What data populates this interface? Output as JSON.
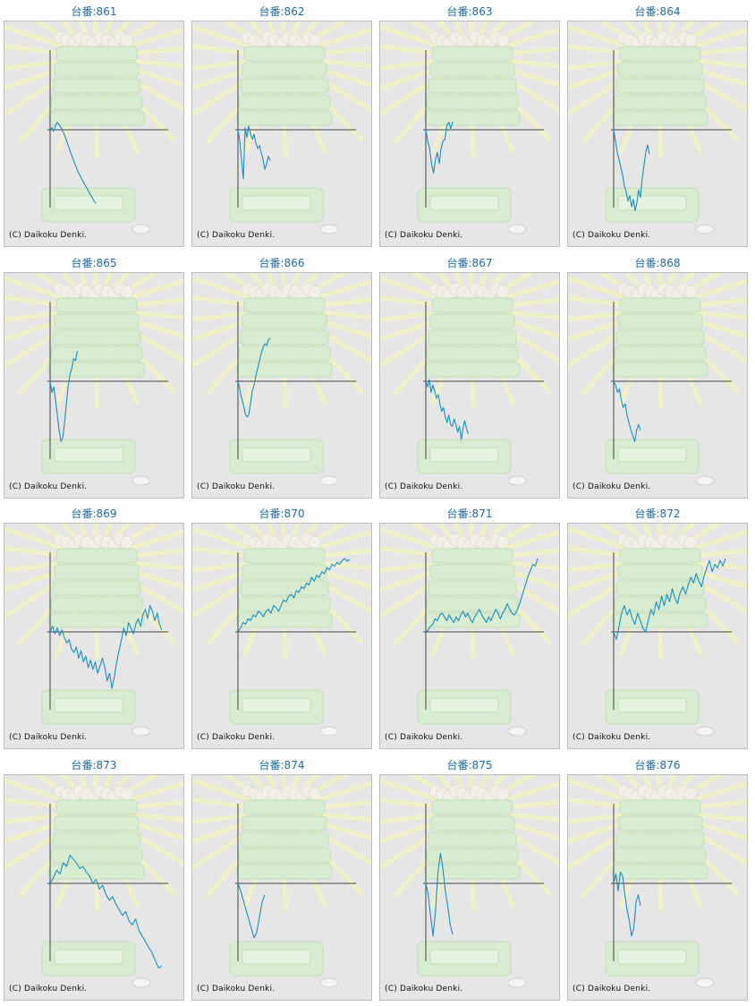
{
  "copyright": "(C) Daikoku Denki.",
  "colors": {
    "line": "#1a8ec2",
    "axis": "#555555",
    "panel_bg": "#e6e6e6",
    "title": "#1f6aa5"
  },
  "chart_data": [
    {
      "type": "line",
      "title": "台番:861",
      "y": [
        0,
        0.06,
        -0.04,
        0.1,
        0.2,
        0.14,
        0.08,
        -0.02,
        -0.12,
        -0.24,
        -0.38,
        -0.52,
        -0.66,
        -0.78,
        -0.9,
        -1.02,
        -1.14,
        -1.22,
        -1.32,
        -1.4,
        -1.48,
        -1.56,
        -1.66,
        -1.74,
        -1.82,
        -1.9,
        -1.96
      ]
    },
    {
      "type": "line",
      "title": "台番:862",
      "y": [
        0,
        -0.3,
        -0.8,
        -1.3,
        0.05,
        -0.2,
        0.1,
        -0.1,
        -0.25,
        -0.12,
        -0.36,
        -0.5,
        -0.42,
        -0.62,
        -0.8,
        -1.05,
        -0.9,
        -0.7,
        -0.82
      ]
    },
    {
      "type": "line",
      "title": "台番:863",
      "y": [
        0,
        -0.3,
        -0.5,
        -0.9,
        -1.15,
        -0.8,
        -0.6,
        -0.9,
        -0.5,
        -0.3,
        -0.25,
        0.12,
        0.2,
        0.03,
        0.22
      ]
    },
    {
      "type": "line",
      "title": "台番:864",
      "y": [
        0,
        -0.3,
        -0.6,
        -0.8,
        -1.0,
        -1.2,
        -1.5,
        -1.65,
        -1.9,
        -1.75,
        -2.05,
        -1.85,
        -2.15,
        -1.95,
        -1.6,
        -1.8,
        -1.3,
        -0.95,
        -0.6,
        -0.4,
        -0.65
      ]
    },
    {
      "type": "line",
      "title": "台番:865",
      "y": [
        0,
        -0.3,
        -0.15,
        -0.5,
        -0.9,
        -1.3,
        -1.6,
        -1.5,
        -1.1,
        -0.6,
        -0.1,
        0.2,
        0.35,
        0.6,
        0.55,
        0.8
      ]
    },
    {
      "type": "line",
      "title": "台番:866",
      "y": [
        0,
        -0.2,
        -0.45,
        -0.6,
        -0.85,
        -0.95,
        -0.9,
        -0.6,
        -0.25,
        -0.1,
        0.15,
        0.35,
        0.55,
        0.75,
        0.9,
        1.0,
        0.95,
        1.1,
        1.15
      ]
    },
    {
      "type": "line",
      "title": "台番:867",
      "y": [
        0,
        -0.15,
        0.05,
        -0.3,
        -0.1,
        -0.25,
        -0.45,
        -0.35,
        -0.6,
        -0.8,
        -0.7,
        -0.95,
        -1.1,
        -0.9,
        -1.15,
        -1.2,
        -1.0,
        -1.15,
        -1.35,
        -1.2,
        -1.55,
        -1.25,
        -1.05,
        -1.25,
        -1.4
      ]
    },
    {
      "type": "line",
      "title": "台番:868",
      "y": [
        0,
        -0.1,
        -0.3,
        -0.2,
        -0.5,
        -0.7,
        -0.6,
        -0.9,
        -1.1,
        -1.3,
        -1.45,
        -1.6,
        -1.3,
        -1.15,
        -1.3
      ]
    },
    {
      "type": "line",
      "title": "台番:869",
      "y": [
        0,
        0.15,
        -0.05,
        0.1,
        -0.1,
        0.05,
        -0.15,
        -0.3,
        -0.2,
        -0.45,
        -0.55,
        -0.4,
        -0.7,
        -0.5,
        -0.8,
        -0.65,
        -0.95,
        -0.75,
        -1.0,
        -0.8,
        -1.1,
        -0.9,
        -0.7,
        -0.95,
        -1.3,
        -1.1,
        -1.5,
        -1.2,
        -0.8,
        -0.5,
        -0.2,
        0.1,
        -0.1,
        0.25,
        0.1,
        -0.05,
        0.2,
        0.35,
        0.15,
        0.45,
        0.6,
        0.35,
        0.7,
        0.55,
        0.3,
        0.5,
        0.2,
        0.05
      ]
    },
    {
      "type": "line",
      "title": "台番:870",
      "y": [
        0,
        0.1,
        0.25,
        0.2,
        0.35,
        0.3,
        0.45,
        0.4,
        0.55,
        0.5,
        0.4,
        0.55,
        0.6,
        0.5,
        0.7,
        0.65,
        0.55,
        0.7,
        0.85,
        0.8,
        0.95,
        1.0,
        0.9,
        1.1,
        1.05,
        1.2,
        1.15,
        1.3,
        1.25,
        1.45,
        1.35,
        1.5,
        1.45,
        1.6,
        1.55,
        1.7,
        1.65,
        1.8,
        1.75,
        1.85,
        1.8,
        1.9,
        1.95,
        1.88,
        1.93
      ]
    },
    {
      "type": "line",
      "title": "台番:871",
      "y": [
        0,
        0.05,
        0.15,
        0.2,
        0.35,
        0.3,
        0.45,
        0.5,
        0.4,
        0.3,
        0.45,
        0.35,
        0.25,
        0.4,
        0.3,
        0.45,
        0.55,
        0.4,
        0.5,
        0.35,
        0.25,
        0.4,
        0.5,
        0.6,
        0.45,
        0.35,
        0.25,
        0.4,
        0.3,
        0.45,
        0.6,
        0.5,
        0.35,
        0.5,
        0.6,
        0.75,
        0.6,
        0.5,
        0.45,
        0.55,
        0.7,
        0.9,
        1.1,
        1.3,
        1.5,
        1.65,
        1.8,
        1.75,
        1.95
      ]
    },
    {
      "type": "line",
      "title": "台番:872",
      "y": [
        0,
        -0.2,
        0.15,
        0.5,
        0.7,
        0.45,
        0.6,
        0.35,
        0.2,
        0.5,
        0.3,
        0.1,
        0.0,
        0.3,
        0.6,
        0.45,
        0.8,
        0.6,
        0.95,
        0.7,
        1.0,
        0.8,
        1.15,
        0.9,
        0.75,
        1.05,
        1.2,
        1.0,
        1.25,
        1.45,
        1.3,
        1.55,
        1.35,
        1.2,
        1.5,
        1.7,
        1.9,
        1.6,
        1.8,
        1.7,
        1.9,
        1.75,
        1.95
      ]
    },
    {
      "type": "line",
      "title": "台番:873",
      "y": [
        0,
        0.15,
        0.35,
        0.25,
        0.55,
        0.45,
        0.75,
        0.65,
        0.55,
        0.4,
        0.45,
        0.3,
        0.2,
        0.0,
        0.1,
        -0.15,
        -0.05,
        -0.3,
        -0.45,
        -0.35,
        -0.55,
        -0.7,
        -0.85,
        -0.75,
        -1.0,
        -1.1,
        -0.95,
        -1.25,
        -1.4,
        -1.55,
        -1.7,
        -1.85,
        -2.05,
        -2.25,
        -2.2
      ]
    },
    {
      "type": "line",
      "title": "台番:874",
      "y": [
        0,
        -0.2,
        -0.45,
        -0.7,
        -0.95,
        -1.2,
        -1.45,
        -1.3,
        -0.9,
        -0.5,
        -0.3
      ]
    },
    {
      "type": "line",
      "title": "台番:875",
      "y": [
        0,
        -0.3,
        -0.9,
        -1.4,
        -0.7,
        0.3,
        0.8,
        0.4,
        -0.2,
        -0.6,
        -1.1,
        -1.35
      ]
    },
    {
      "type": "line",
      "title": "台番:876",
      "y": [
        0,
        0.25,
        -0.2,
        0.3,
        0.2,
        -0.3,
        -0.7,
        -1.0,
        -1.4,
        -1.2,
        -0.5,
        -0.3,
        -0.6
      ]
    }
  ]
}
